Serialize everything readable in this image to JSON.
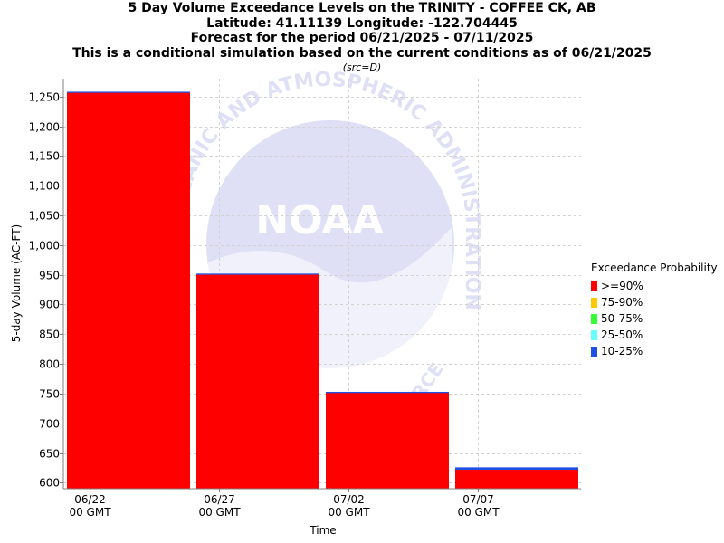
{
  "titles": {
    "line1": "5 Day Volume Exceedance Levels on the TRINITY - COFFEE CK, AB",
    "line2": "Latitude: 41.11139 Longitude: -122.704445",
    "line3": "Forecast for the period 06/21/2025 - 07/11/2025",
    "line4": "This is a conditional simulation based on the current conditions as of 06/21/2025",
    "source": "(src=D)"
  },
  "colors": {
    "ge90": "#ff0000",
    "p75_90": "#ffc800",
    "p50_75": "#33ff33",
    "p25_50": "#66ffff",
    "p10_25": "#1f4fe0",
    "grid": "#d2d2d2",
    "watermark": "#dfe0f6"
  },
  "watermark": {
    "arc_text": "OCEANIC AND ATMOSPHERIC ADMINISTRATION",
    "logo_text": "NOAA",
    "lower_text": "RCE"
  },
  "legend": {
    "title": "Exceedance Probability",
    "items": [
      {
        "label": ">=90%",
        "color": "#ff0000"
      },
      {
        "label": "75-90%",
        "color": "#ffc800"
      },
      {
        "label": "50-75%",
        "color": "#33ff33"
      },
      {
        "label": "25-50%",
        "color": "#66ffff"
      },
      {
        "label": "10-25%",
        "color": "#1f4fe0"
      }
    ]
  },
  "chart_data": {
    "type": "bar",
    "title": "5 Day Volume Exceedance Levels on the TRINITY - COFFEE CK, AB",
    "xlabel": "Time",
    "ylabel": "5-day Volume (AC-FT)",
    "ylim": [
      590,
      1280
    ],
    "yticks": [
      600,
      650,
      700,
      750,
      800,
      850,
      900,
      950,
      1000,
      1050,
      1100,
      1150,
      1200,
      1250
    ],
    "ytick_labels": [
      "600",
      "650",
      "700",
      "750",
      "800",
      "850",
      "900",
      "950",
      "1,000",
      "1,050",
      "1,100",
      "1,150",
      "1,200",
      "1,250"
    ],
    "xlim": [
      "06/21/2025",
      "07/11/2025"
    ],
    "xticks": [
      {
        "date": "06/22/2025",
        "line1": "06/22",
        "line2": "00 GMT"
      },
      {
        "date": "06/27/2025",
        "line1": "06/27",
        "line2": "00 GMT"
      },
      {
        "date": "07/02/2025",
        "line1": "07/02",
        "line2": "00 GMT"
      },
      {
        "date": "07/07/2025",
        "line1": "07/07",
        "line2": "00 GMT"
      }
    ],
    "grid": true,
    "legend_position": "right",
    "bars": [
      {
        "start": "06/21/2025",
        "end": "06/26/2025",
        "ge90": 1256,
        "p10_25": 1258
      },
      {
        "start": "06/26/2025",
        "end": "07/01/2025",
        "ge90": 950,
        "p10_25": 952
      },
      {
        "start": "07/01/2025",
        "end": "07/06/2025",
        "ge90": 751,
        "p10_25": 753
      },
      {
        "start": "07/06/2025",
        "end": "07/11/2025",
        "ge90": 622,
        "p10_25": 626
      }
    ]
  }
}
